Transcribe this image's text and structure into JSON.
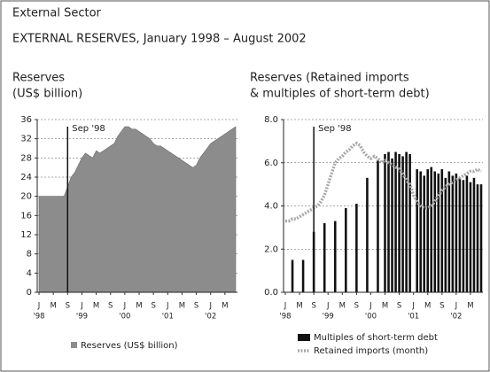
{
  "header": {
    "title": "External Sector",
    "subtitle": "EXTERNAL RESERVES, January 1998 – August 2002"
  },
  "chart_data": [
    {
      "type": "area",
      "title": [
        "Reserves",
        "(US$ billion)"
      ],
      "categories": [
        "J",
        null,
        null,
        null,
        "M",
        null,
        null,
        null,
        "S",
        null,
        null,
        null,
        "J",
        null,
        null,
        null,
        "M",
        null,
        null,
        null,
        "S",
        null,
        null,
        null,
        "J",
        null,
        null,
        null,
        "M",
        null,
        null,
        null,
        "S",
        null,
        null,
        null,
        "J",
        null,
        null,
        null,
        "M",
        null,
        null,
        null,
        "S",
        null,
        null,
        null,
        "J",
        null,
        null,
        null,
        "M",
        null,
        null,
        null
      ],
      "year_ticks": [
        {
          "value": 0,
          "label": "'98"
        },
        {
          "value": 12,
          "label": "'99"
        },
        {
          "value": 24,
          "label": "'00"
        },
        {
          "value": 36,
          "label": "'01"
        },
        {
          "value": 48,
          "label": "'02"
        }
      ],
      "ylim": [
        0,
        36
      ],
      "yticks": [
        0,
        4,
        8,
        12,
        16,
        20,
        24,
        28,
        32,
        36
      ],
      "grid": true,
      "annotation": {
        "text": "Sep '98",
        "x": 8
      },
      "series": [
        {
          "name": "Reserves (US$ billion)",
          "color": "#8c8c8c",
          "values": [
            20,
            20,
            20,
            20,
            20,
            20,
            20,
            20,
            22,
            24,
            25,
            26.5,
            28,
            29,
            28.5,
            28,
            29.5,
            29,
            29.5,
            30,
            30.5,
            31,
            32.5,
            33.5,
            34.5,
            34.5,
            34,
            34,
            33.5,
            33,
            32.5,
            32,
            31,
            30.5,
            30.5,
            30,
            29.5,
            29,
            28.5,
            28,
            27.5,
            27,
            26.5,
            26,
            26.5,
            28,
            29,
            30,
            31,
            31.5,
            32,
            32.5,
            33,
            33.5,
            34,
            34.5
          ]
        }
      ]
    },
    {
      "type": "combo",
      "title": [
        "Reserves (Retained imports",
        "& multiples of short-term debt)"
      ],
      "categories": [
        "J",
        null,
        null,
        null,
        "M",
        null,
        null,
        null,
        "S",
        null,
        null,
        null,
        "J",
        null,
        null,
        null,
        "M",
        null,
        null,
        null,
        "S",
        null,
        null,
        null,
        "J",
        null,
        null,
        null,
        "M",
        null,
        null,
        null,
        "S",
        null,
        null,
        null,
        "J",
        null,
        null,
        null,
        "M",
        null,
        null,
        null,
        "S",
        null,
        null,
        null,
        "J",
        null,
        null,
        null,
        "M",
        null,
        null,
        null
      ],
      "year_ticks": [
        {
          "value": 0,
          "label": "'98"
        },
        {
          "value": 12,
          "label": "'99"
        },
        {
          "value": 24,
          "label": "'00"
        },
        {
          "value": 36,
          "label": "'01"
        },
        {
          "value": 48,
          "label": "'02"
        }
      ],
      "ylim": [
        0,
        8
      ],
      "yticks": [
        {
          "value": 0,
          "label": "0.0"
        },
        {
          "value": 2,
          "label": "2.0"
        },
        {
          "value": 4,
          "label": "4.0"
        },
        {
          "value": 6,
          "label": "6.0"
        },
        {
          "value": 8,
          "label": "8.0"
        }
      ],
      "grid": true,
      "annotation": {
        "text": "Sep '98",
        "x": 8
      },
      "series": [
        {
          "name": "Multiples of short-term debt",
          "type": "bar",
          "color": "#111111",
          "values": [
            null,
            null,
            1.5,
            null,
            null,
            1.5,
            null,
            null,
            2.8,
            null,
            null,
            3.2,
            null,
            null,
            3.3,
            null,
            null,
            3.9,
            null,
            null,
            4.1,
            null,
            null,
            5.3,
            null,
            null,
            6.1,
            null,
            6.4,
            6.5,
            6.2,
            6.5,
            6.4,
            6.3,
            6.5,
            6.4,
            null,
            5.7,
            5.6,
            5.4,
            5.7,
            5.8,
            5.6,
            5.5,
            5.7,
            5.3,
            5.6,
            5.4,
            5.5,
            5.3,
            5.2,
            5.4,
            5.1,
            5.3,
            5.0,
            5.0
          ]
        },
        {
          "name": "Retained imports (month)",
          "type": "line",
          "color": "#a8a8a8",
          "values": [
            3.3,
            3.3,
            3.4,
            3.4,
            3.5,
            3.6,
            3.7,
            3.8,
            3.9,
            4.0,
            4.2,
            4.5,
            5.0,
            5.5,
            6.0,
            6.2,
            6.3,
            6.5,
            6.6,
            6.8,
            6.9,
            6.8,
            6.5,
            6.3,
            6.2,
            6.3,
            6.2,
            6.0,
            6.1,
            6.0,
            5.9,
            5.8,
            5.7,
            5.5,
            5.2,
            5.0,
            4.5,
            4.2,
            4.0,
            3.9,
            3.9,
            4.0,
            4.2,
            4.5,
            4.7,
            4.9,
            5.0,
            5.1,
            5.2,
            5.3,
            5.4,
            5.5,
            5.6,
            5.6,
            5.7,
            5.6
          ]
        }
      ]
    }
  ]
}
